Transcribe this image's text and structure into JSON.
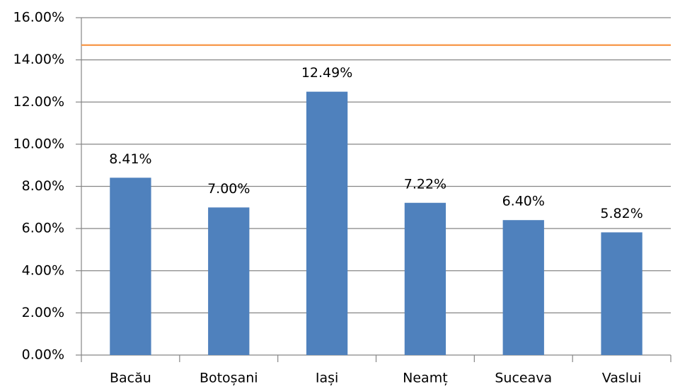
{
  "chart_data": {
    "type": "bar",
    "categories": [
      "Bacău",
      "Botoșani",
      "Iași",
      "Neamț",
      "Suceava",
      "Vaslui"
    ],
    "values": [
      8.41,
      7.0,
      12.49,
      7.22,
      6.4,
      5.82
    ],
    "value_labels": [
      "8.41%",
      "7.00%",
      "12.49%",
      "7.22%",
      "6.40%",
      "5.82%"
    ],
    "color": "#4f81bd",
    "ylim": [
      0,
      16
    ],
    "yticks": [
      {
        "value": 0,
        "label": "0.00%"
      },
      {
        "value": 2,
        "label": "2.00%"
      },
      {
        "value": 4,
        "label": "4.00%"
      },
      {
        "value": 6,
        "label": "6.00%"
      },
      {
        "value": 8,
        "label": "8.00%"
      },
      {
        "value": 10,
        "label": "10.00%"
      },
      {
        "value": 12,
        "label": "12.00%"
      },
      {
        "value": 14,
        "label": "14.00%"
      },
      {
        "value": 16,
        "label": "16.00%"
      }
    ],
    "grid": true,
    "reference_line": 14.7,
    "reference_color": "#f79646"
  }
}
